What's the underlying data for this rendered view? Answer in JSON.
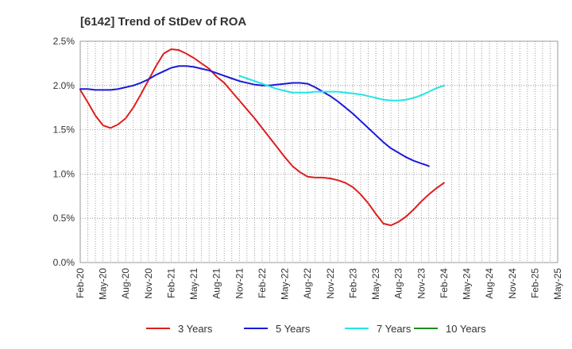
{
  "chart_data": {
    "type": "line",
    "title": "[6142]  Trend of StDev of ROA",
    "xlabel": "",
    "ylabel": "",
    "ylim": [
      0,
      2.5
    ],
    "y_ticks": [
      "0.0%",
      "0.5%",
      "1.0%",
      "1.5%",
      "2.0%",
      "2.5%"
    ],
    "x_ticks": [
      "Feb-20",
      "May-20",
      "Aug-20",
      "Nov-20",
      "Feb-21",
      "May-21",
      "Aug-21",
      "Nov-21",
      "Feb-22",
      "May-22",
      "Aug-22",
      "Nov-22",
      "Feb-23",
      "May-23",
      "Aug-23",
      "Nov-23",
      "Feb-24",
      "May-24",
      "Aug-24",
      "Nov-24",
      "Feb-25",
      "May-25"
    ],
    "grid": true,
    "legend_position": "bottom",
    "series": [
      {
        "name": "3 Years",
        "color": "#dd1f1f",
        "values": [
          1.95,
          1.81,
          1.66,
          1.55,
          1.52,
          1.56,
          1.63,
          1.75,
          1.9,
          2.06,
          2.22,
          2.36,
          2.41,
          2.4,
          2.36,
          2.31,
          2.25,
          2.19,
          2.1,
          2.03,
          1.93,
          1.83,
          1.73,
          1.63,
          1.52,
          1.41,
          1.3,
          1.19,
          1.09,
          1.02,
          0.97,
          0.96,
          0.96,
          0.95,
          0.93,
          0.9,
          0.85,
          0.77,
          0.67,
          0.55,
          0.44,
          0.42,
          0.46,
          0.52,
          0.6,
          0.69,
          0.77,
          0.84,
          0.9
        ]
      },
      {
        "name": "5 Years",
        "color": "#1a1adb",
        "values": [
          1.96,
          1.96,
          1.95,
          1.95,
          1.95,
          1.96,
          1.98,
          2.0,
          2.03,
          2.07,
          2.12,
          2.16,
          2.2,
          2.22,
          2.22,
          2.21,
          2.19,
          2.17,
          2.14,
          2.11,
          2.08,
          2.05,
          2.03,
          2.01,
          2.0,
          2.0,
          2.01,
          2.02,
          2.03,
          2.03,
          2.02,
          1.98,
          1.93,
          1.88,
          1.82,
          1.75,
          1.68,
          1.6,
          1.52,
          1.44,
          1.36,
          1.29,
          1.24,
          1.19,
          1.15,
          1.12,
          1.09
        ]
      },
      {
        "name": "7 Years",
        "color": "#22e5e5",
        "values": [
          null,
          null,
          null,
          null,
          null,
          null,
          null,
          null,
          null,
          null,
          null,
          null,
          null,
          null,
          null,
          null,
          null,
          null,
          null,
          null,
          null,
          2.11,
          2.08,
          2.05,
          2.02,
          1.99,
          1.96,
          1.94,
          1.92,
          1.92,
          1.92,
          1.93,
          1.93,
          1.93,
          1.93,
          1.92,
          1.91,
          1.9,
          1.88,
          1.86,
          1.84,
          1.83,
          1.83,
          1.84,
          1.86,
          1.89,
          1.93,
          1.97,
          2.0
        ]
      },
      {
        "name": "10 Years",
        "color": "#1e8c1e",
        "values": []
      }
    ]
  }
}
